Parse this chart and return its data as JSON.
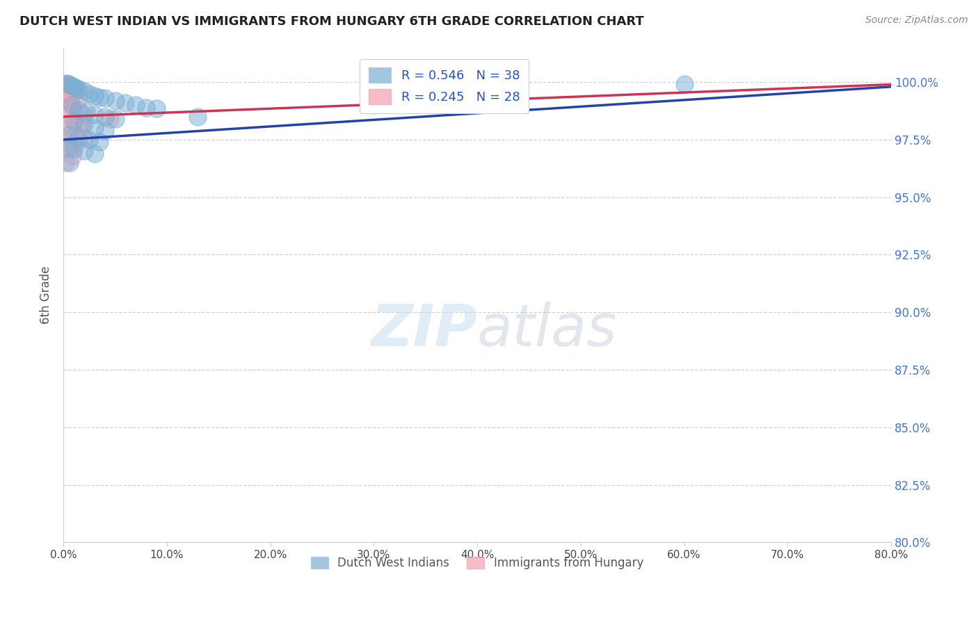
{
  "title": "DUTCH WEST INDIAN VS IMMIGRANTS FROM HUNGARY 6TH GRADE CORRELATION CHART",
  "source": "Source: ZipAtlas.com",
  "ylabel": "6th Grade",
  "y_ticks": [
    80.0,
    82.5,
    85.0,
    87.5,
    90.0,
    92.5,
    95.0,
    97.5,
    100.0
  ],
  "x_ticks": [
    0.0,
    10.0,
    20.0,
    30.0,
    40.0,
    50.0,
    60.0,
    70.0,
    80.0
  ],
  "xlim": [
    0,
    80
  ],
  "ylim": [
    80.0,
    101.5
  ],
  "blue_R": 0.546,
  "blue_N": 38,
  "pink_R": 0.245,
  "pink_N": 28,
  "blue_color": "#7BAFD4",
  "pink_color": "#F4A0B0",
  "blue_line_color": "#2244AA",
  "pink_line_color": "#CC3355",
  "legend_blue_label": "Dutch West Indians",
  "legend_pink_label": "Immigrants from Hungary",
  "watermark_text": "ZIPatlas",
  "blue_dots": [
    [
      0.3,
      99.95
    ],
    [
      0.5,
      99.9
    ],
    [
      0.7,
      99.85
    ],
    [
      1.0,
      99.8
    ],
    [
      1.2,
      99.75
    ],
    [
      1.5,
      99.7
    ],
    [
      2.0,
      99.6
    ],
    [
      2.5,
      99.5
    ],
    [
      3.0,
      99.4
    ],
    [
      3.5,
      99.35
    ],
    [
      4.0,
      99.3
    ],
    [
      5.0,
      99.2
    ],
    [
      6.0,
      99.1
    ],
    [
      7.0,
      99.0
    ],
    [
      8.0,
      98.9
    ],
    [
      9.0,
      98.85
    ],
    [
      0.8,
      99.0
    ],
    [
      1.5,
      98.8
    ],
    [
      2.2,
      98.7
    ],
    [
      3.0,
      98.6
    ],
    [
      4.0,
      98.5
    ],
    [
      5.0,
      98.4
    ],
    [
      1.0,
      98.3
    ],
    [
      2.0,
      98.2
    ],
    [
      3.0,
      98.0
    ],
    [
      4.0,
      97.9
    ],
    [
      0.5,
      97.7
    ],
    [
      1.5,
      97.6
    ],
    [
      2.5,
      97.5
    ],
    [
      3.5,
      97.4
    ],
    [
      0.4,
      97.2
    ],
    [
      1.0,
      97.1
    ],
    [
      2.0,
      97.0
    ],
    [
      3.0,
      96.9
    ],
    [
      13.0,
      98.5
    ],
    [
      30.0,
      99.0
    ],
    [
      60.0,
      99.9
    ],
    [
      0.6,
      96.5
    ]
  ],
  "pink_dots": [
    [
      0.2,
      99.95
    ],
    [
      0.4,
      99.9
    ],
    [
      0.6,
      99.85
    ],
    [
      0.8,
      99.8
    ],
    [
      1.0,
      99.75
    ],
    [
      1.2,
      99.7
    ],
    [
      0.3,
      99.6
    ],
    [
      0.5,
      99.5
    ],
    [
      0.7,
      99.4
    ],
    [
      1.5,
      99.3
    ],
    [
      0.4,
      99.2
    ],
    [
      0.8,
      99.1
    ],
    [
      0.6,
      98.9
    ],
    [
      1.0,
      98.8
    ],
    [
      2.0,
      98.6
    ],
    [
      0.3,
      98.5
    ],
    [
      1.5,
      98.3
    ],
    [
      0.5,
      98.2
    ],
    [
      0.8,
      97.9
    ],
    [
      1.2,
      97.7
    ],
    [
      0.4,
      97.5
    ],
    [
      1.0,
      97.3
    ],
    [
      0.6,
      97.1
    ],
    [
      2.0,
      97.6
    ],
    [
      4.5,
      98.4
    ],
    [
      0.9,
      96.8
    ],
    [
      0.2,
      96.5
    ],
    [
      1.8,
      98.1
    ]
  ],
  "blue_line_endpoints": [
    [
      0,
      97.5
    ],
    [
      80,
      99.8
    ]
  ],
  "pink_line_endpoints": [
    [
      0,
      98.5
    ],
    [
      80,
      99.9
    ]
  ]
}
